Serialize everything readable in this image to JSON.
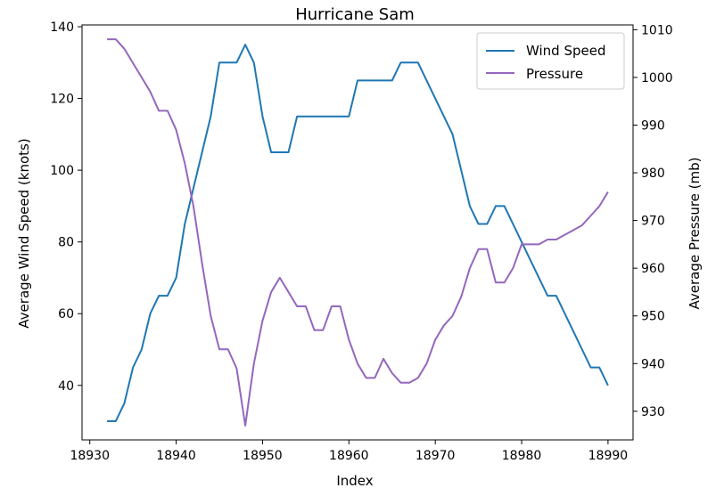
{
  "chart_data": {
    "type": "line",
    "title": "Hurricane Sam",
    "xlabel": "Index",
    "ylabel_left": "Average Wind Speed (knots)",
    "ylabel_right": "Average Pressure (mb)",
    "xlim": [
      18929.1,
      18992.9
    ],
    "ylim_left": [
      24.8,
      140.5
    ],
    "ylim_right": [
      924.0,
      1011.0
    ],
    "x_ticks": [
      18930,
      18940,
      18950,
      18960,
      18970,
      18980,
      18990
    ],
    "y_left_ticks": [
      40,
      60,
      80,
      100,
      120,
      140
    ],
    "y_right_ticks": [
      930,
      940,
      950,
      960,
      970,
      980,
      990,
      1000,
      1010
    ],
    "grid": false,
    "legend_position": "top-right",
    "series": [
      {
        "name": "Wind Speed",
        "axis": "left",
        "color": "#1f77b4",
        "points": [
          [
            18932,
            30
          ],
          [
            18933,
            30
          ],
          [
            18934,
            35
          ],
          [
            18935,
            45
          ],
          [
            18936,
            50
          ],
          [
            18937,
            60
          ],
          [
            18938,
            65
          ],
          [
            18939,
            65
          ],
          [
            18940,
            70
          ],
          [
            18941,
            85
          ],
          [
            18942,
            95
          ],
          [
            18943,
            105
          ],
          [
            18944,
            115
          ],
          [
            18945,
            130
          ],
          [
            18946,
            130
          ],
          [
            18947,
            130
          ],
          [
            18948,
            135
          ],
          [
            18949,
            130
          ],
          [
            18950,
            115
          ],
          [
            18951,
            105
          ],
          [
            18952,
            105
          ],
          [
            18953,
            105
          ],
          [
            18954,
            115
          ],
          [
            18955,
            115
          ],
          [
            18956,
            115
          ],
          [
            18957,
            115
          ],
          [
            18958,
            115
          ],
          [
            18959,
            115
          ],
          [
            18960,
            115
          ],
          [
            18961,
            125
          ],
          [
            18962,
            125
          ],
          [
            18963,
            125
          ],
          [
            18964,
            125
          ],
          [
            18965,
            125
          ],
          [
            18966,
            130
          ],
          [
            18967,
            130
          ],
          [
            18968,
            130
          ],
          [
            18969,
            125
          ],
          [
            18970,
            120
          ],
          [
            18971,
            115
          ],
          [
            18972,
            110
          ],
          [
            18973,
            100
          ],
          [
            18974,
            90
          ],
          [
            18975,
            85
          ],
          [
            18976,
            85
          ],
          [
            18977,
            90
          ],
          [
            18978,
            90
          ],
          [
            18979,
            85
          ],
          [
            18980,
            80
          ],
          [
            18981,
            75
          ],
          [
            18982,
            70
          ],
          [
            18983,
            65
          ],
          [
            18984,
            65
          ],
          [
            18985,
            60
          ],
          [
            18986,
            55
          ],
          [
            18987,
            50
          ],
          [
            18988,
            45
          ],
          [
            18989,
            45
          ],
          [
            18990,
            40
          ]
        ]
      },
      {
        "name": "Pressure",
        "axis": "right",
        "color": "#9467bd",
        "points": [
          [
            18932,
            1008
          ],
          [
            18933,
            1008
          ],
          [
            18934,
            1006
          ],
          [
            18935,
            1003
          ],
          [
            18936,
            1000
          ],
          [
            18937,
            997
          ],
          [
            18938,
            993
          ],
          [
            18939,
            993
          ],
          [
            18940,
            989
          ],
          [
            18941,
            982
          ],
          [
            18942,
            973
          ],
          [
            18943,
            961
          ],
          [
            18944,
            950
          ],
          [
            18945,
            943
          ],
          [
            18946,
            943
          ],
          [
            18947,
            939
          ],
          [
            18948,
            927
          ],
          [
            18949,
            940
          ],
          [
            18950,
            949
          ],
          [
            18951,
            955
          ],
          [
            18952,
            958
          ],
          [
            18953,
            955
          ],
          [
            18954,
            952
          ],
          [
            18955,
            952
          ],
          [
            18956,
            947
          ],
          [
            18957,
            947
          ],
          [
            18958,
            952
          ],
          [
            18959,
            952
          ],
          [
            18960,
            945
          ],
          [
            18961,
            940
          ],
          [
            18962,
            937
          ],
          [
            18963,
            937
          ],
          [
            18964,
            941
          ],
          [
            18965,
            938
          ],
          [
            18966,
            936
          ],
          [
            18967,
            936
          ],
          [
            18968,
            937
          ],
          [
            18969,
            940
          ],
          [
            18970,
            945
          ],
          [
            18971,
            948
          ],
          [
            18972,
            950
          ],
          [
            18973,
            954
          ],
          [
            18974,
            960
          ],
          [
            18975,
            964
          ],
          [
            18976,
            964
          ],
          [
            18977,
            957
          ],
          [
            18978,
            957
          ],
          [
            18979,
            960
          ],
          [
            18980,
            965
          ],
          [
            18981,
            965
          ],
          [
            18982,
            965
          ],
          [
            18983,
            966
          ],
          [
            18984,
            966
          ],
          [
            18985,
            967
          ],
          [
            18986,
            968
          ],
          [
            18987,
            969
          ],
          [
            18988,
            971
          ],
          [
            18989,
            973
          ],
          [
            18990,
            976
          ]
        ]
      }
    ]
  }
}
